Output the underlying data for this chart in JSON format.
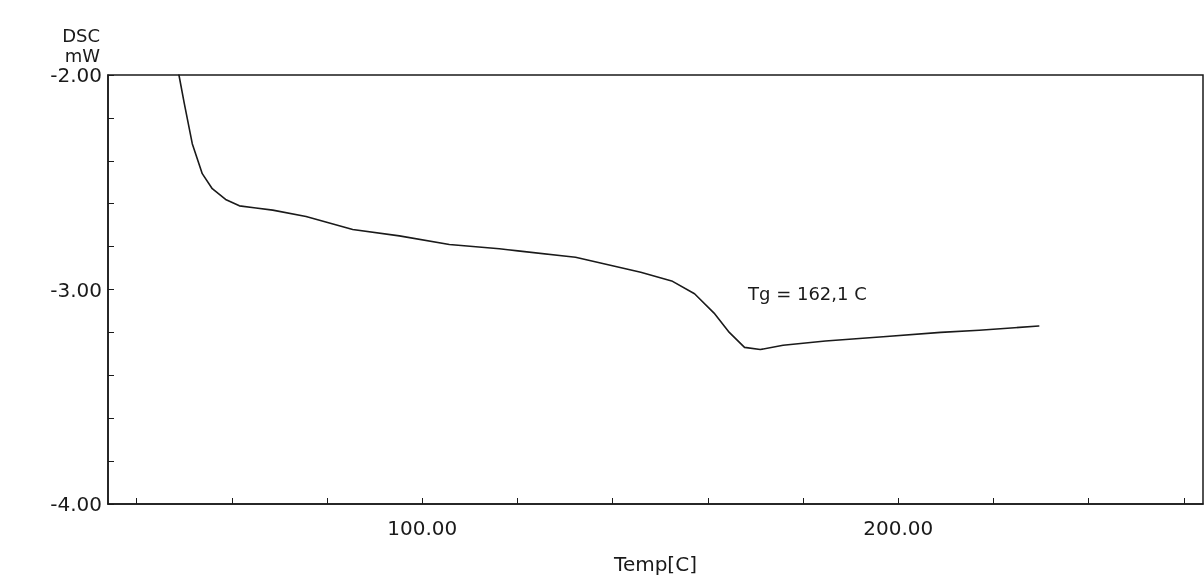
{
  "chart_data": {
    "type": "line",
    "xlabel": "Temp[C]",
    "ylabel": "DSC\nmW",
    "color": "#1a1a1a",
    "x": [
      48.9,
      50.0,
      51.7,
      53.8,
      55.9,
      58.7,
      61.6,
      68.6,
      75.6,
      85.4,
      95.2,
      105.7,
      116.2,
      120.1,
      132.2,
      145.9,
      152.4,
      157.2,
      161.3,
      164.5,
      167.7,
      171.0,
      175.8,
      184.7,
      196.8,
      208.9,
      217.0,
      229.5
    ],
    "values": [
      -2.0,
      -2.13,
      -2.32,
      -2.46,
      -2.53,
      -2.58,
      -2.61,
      -2.63,
      -2.66,
      -2.72,
      -2.75,
      -2.79,
      -2.81,
      -2.82,
      -2.85,
      -2.92,
      -2.96,
      -3.02,
      -3.11,
      -3.2,
      -3.27,
      -3.28,
      -3.26,
      -3.24,
      -3.22,
      -3.2,
      -3.19,
      -3.17
    ],
    "xlim": [
      34,
      264
    ],
    "xticks": [
      {
        "value": 40,
        "label": null
      },
      {
        "value": 60,
        "label": null
      },
      {
        "value": 80,
        "label": null
      },
      {
        "value": 100,
        "label": "100.00"
      },
      {
        "value": 120,
        "label": null
      },
      {
        "value": 140,
        "label": null
      },
      {
        "value": 160,
        "label": null
      },
      {
        "value": 180,
        "label": null
      },
      {
        "value": 200,
        "label": "200.00"
      },
      {
        "value": 220,
        "label": null
      },
      {
        "value": 240,
        "label": null
      },
      {
        "value": 260,
        "label": null
      }
    ],
    "ylim": [
      -4,
      -2
    ],
    "yticks": [
      {
        "value": -4,
        "label": "-4.00"
      },
      {
        "value": -3.8,
        "label": null
      },
      {
        "value": -3.6,
        "label": null
      },
      {
        "value": -3.4,
        "label": null
      },
      {
        "value": -3.2,
        "label": null
      },
      {
        "value": -3,
        "label": "-3.00"
      },
      {
        "value": -2.8,
        "label": null
      },
      {
        "value": -2.6,
        "label": null
      },
      {
        "value": -2.4,
        "label": null
      },
      {
        "value": -2.2,
        "label": null
      },
      {
        "value": -2,
        "label": "-2.00"
      }
    ],
    "annotations": [
      "Tg = 162,1 C"
    ],
    "grid": false,
    "marker": "none",
    "line_style": "solid"
  }
}
